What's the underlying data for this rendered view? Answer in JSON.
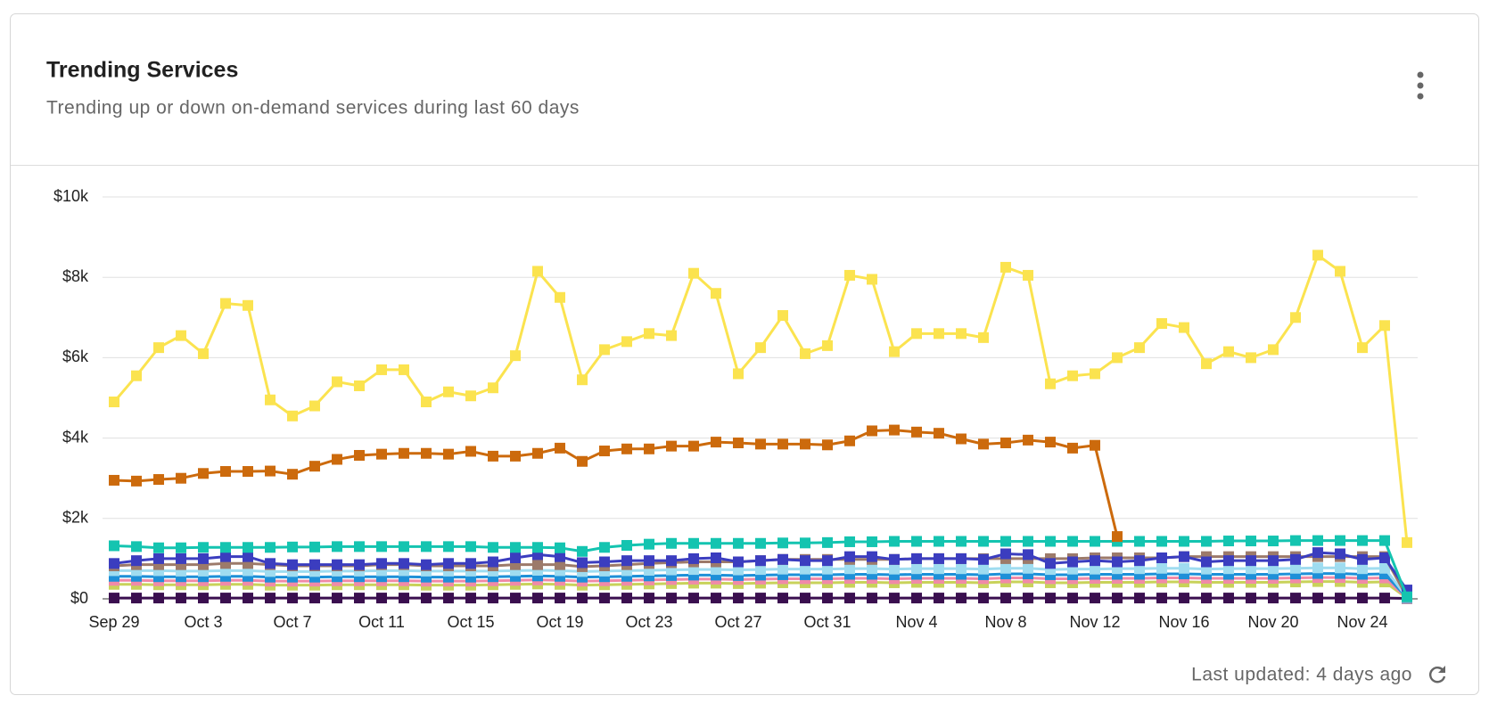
{
  "chart_data": {
    "type": "line",
    "title": "Trending Services",
    "subtitle": "Trending up or down on-demand services during last 60 days",
    "categories": [
      "Sep 29",
      null,
      null,
      null,
      "Oct 3",
      null,
      null,
      null,
      "Oct 7",
      null,
      null,
      null,
      "Oct 11",
      null,
      null,
      null,
      "Oct 15",
      null,
      null,
      null,
      "Oct 19",
      null,
      null,
      null,
      "Oct 23",
      null,
      null,
      null,
      "Oct 27",
      null,
      null,
      null,
      "Oct 31",
      null,
      null,
      null,
      "Nov 4",
      null,
      null,
      null,
      "Nov 8",
      null,
      null,
      null,
      "Nov 12",
      null,
      null,
      null,
      "Nov 16",
      null,
      null,
      null,
      "Nov 20",
      null,
      null,
      null,
      "Nov 24",
      null,
      null
    ],
    "ylim": [
      0,
      10000
    ],
    "yticks": [
      {
        "value": 0,
        "label": "$0"
      },
      {
        "value": 2000,
        "label": "$2k"
      },
      {
        "value": 4000,
        "label": "$4k"
      },
      {
        "value": 6000,
        "label": "$6k"
      },
      {
        "value": 8000,
        "label": "$8k"
      },
      {
        "value": 10000,
        "label": "$10k"
      }
    ],
    "grid": true,
    "series": [
      {
        "color": "#fbe34f",
        "values": [
          4900,
          5550,
          6250,
          6550,
          6100,
          7350,
          7300,
          4950,
          4550,
          4800,
          5400,
          5300,
          5700,
          5700,
          4900,
          5150,
          5050,
          5250,
          6050,
          8150,
          7500,
          5450,
          6200,
          6400,
          6600,
          6550,
          8100,
          7600,
          5600,
          6250,
          7050,
          6100,
          6300,
          8050,
          7950,
          6150,
          6600,
          6600,
          6600,
          6500,
          8250,
          8050,
          5350,
          5550,
          5600,
          6000,
          6250,
          6850,
          6750,
          5850,
          6150,
          6000,
          6200,
          7000,
          8550,
          8150,
          6250,
          6800,
          1400
        ]
      },
      {
        "color": "#cc6a0c",
        "values": [
          2950,
          2930,
          2970,
          3000,
          3120,
          3170,
          3170,
          3180,
          3100,
          3300,
          3470,
          3570,
          3600,
          3620,
          3620,
          3600,
          3670,
          3550,
          3550,
          3620,
          3750,
          3420,
          3680,
          3730,
          3730,
          3800,
          3800,
          3900,
          3880,
          3850,
          3850,
          3850,
          3830,
          3930,
          4180,
          4200,
          4150,
          4120,
          3980,
          3850,
          3880,
          3950,
          3900,
          3750,
          3820,
          1550,
          null,
          null,
          null,
          null,
          null,
          null,
          null,
          null,
          null,
          null,
          null,
          null,
          null
        ]
      },
      {
        "color": "#14c4b0",
        "values": [
          1320,
          1300,
          1270,
          1270,
          1280,
          1280,
          1280,
          1280,
          1290,
          1290,
          1300,
          1300,
          1300,
          1300,
          1300,
          1300,
          1300,
          1280,
          1280,
          1280,
          1270,
          1180,
          1280,
          1330,
          1360,
          1380,
          1380,
          1380,
          1380,
          1380,
          1390,
          1390,
          1400,
          1420,
          1420,
          1430,
          1430,
          1430,
          1430,
          1430,
          1430,
          1430,
          1430,
          1430,
          1430,
          1430,
          1430,
          1430,
          1430,
          1430,
          1440,
          1440,
          1440,
          1450,
          1450,
          1450,
          1450,
          1450,
          50
        ]
      },
      {
        "color": "#3b3dbf",
        "values": [
          880,
          950,
          1000,
          1000,
          1000,
          1050,
          1050,
          880,
          850,
          850,
          850,
          850,
          880,
          880,
          850,
          880,
          880,
          920,
          1020,
          1100,
          1050,
          900,
          920,
          950,
          950,
          950,
          1000,
          1020,
          920,
          950,
          980,
          950,
          950,
          1050,
          1050,
          980,
          1000,
          1000,
          1000,
          980,
          1120,
          1100,
          880,
          920,
          950,
          920,
          950,
          1020,
          1050,
          920,
          950,
          950,
          950,
          980,
          1150,
          1120,
          980,
          1020,
          220
        ]
      },
      {
        "color": "#9c7a6a",
        "values": [
          820,
          850,
          850,
          850,
          850,
          880,
          880,
          850,
          820,
          820,
          820,
          820,
          850,
          850,
          820,
          820,
          820,
          820,
          850,
          850,
          850,
          800,
          820,
          850,
          880,
          900,
          920,
          920,
          920,
          950,
          980,
          980,
          980,
          980,
          980,
          980,
          1000,
          1000,
          1000,
          1000,
          1000,
          1000,
          1000,
          1000,
          1020,
          1020,
          1020,
          1020,
          1050,
          1050,
          1050,
          1050,
          1050,
          1050,
          1050,
          1050,
          1050,
          1050,
          50
        ]
      },
      {
        "color": "#9fdcf0",
        "values": [
          700,
          700,
          700,
          690,
          690,
          700,
          700,
          680,
          680,
          680,
          690,
          690,
          700,
          700,
          690,
          690,
          690,
          690,
          700,
          710,
          700,
          680,
          690,
          700,
          710,
          720,
          730,
          730,
          720,
          730,
          740,
          740,
          740,
          750,
          750,
          740,
          750,
          750,
          750,
          740,
          760,
          760,
          730,
          740,
          740,
          750,
          750,
          760,
          760,
          740,
          750,
          750,
          750,
          760,
          770,
          770,
          750,
          760,
          40
        ]
      },
      {
        "color": "#1e90d8",
        "values": [
          560,
          560,
          550,
          550,
          550,
          560,
          560,
          540,
          540,
          540,
          550,
          550,
          550,
          550,
          540,
          540,
          540,
          550,
          560,
          570,
          560,
          540,
          550,
          560,
          570,
          580,
          590,
          590,
          580,
          590,
          600,
          600,
          600,
          610,
          610,
          600,
          610,
          610,
          610,
          600,
          620,
          620,
          600,
          600,
          610,
          610,
          610,
          620,
          620,
          610,
          610,
          610,
          610,
          620,
          630,
          630,
          610,
          620,
          30
        ]
      },
      {
        "color": "#f08aa8",
        "values": [
          460,
          460,
          450,
          450,
          450,
          460,
          460,
          440,
          440,
          440,
          450,
          450,
          450,
          450,
          440,
          440,
          440,
          450,
          460,
          470,
          460,
          440,
          450,
          460,
          470,
          480,
          490,
          490,
          480,
          490,
          500,
          500,
          500,
          510,
          510,
          500,
          510,
          510,
          510,
          500,
          520,
          520,
          500,
          500,
          510,
          510,
          510,
          520,
          520,
          510,
          510,
          510,
          510,
          520,
          530,
          530,
          510,
          520,
          20
        ]
      },
      {
        "color": "#c8d25a",
        "values": [
          360,
          360,
          350,
          350,
          350,
          360,
          360,
          340,
          340,
          340,
          350,
          350,
          350,
          350,
          340,
          340,
          340,
          350,
          360,
          370,
          360,
          340,
          350,
          360,
          370,
          380,
          390,
          390,
          380,
          390,
          400,
          400,
          400,
          410,
          410,
          400,
          410,
          410,
          410,
          400,
          420,
          420,
          400,
          400,
          410,
          410,
          410,
          420,
          420,
          410,
          410,
          410,
          410,
          420,
          430,
          430,
          410,
          420,
          20
        ]
      },
      {
        "color": "#3a0f4f",
        "values": [
          20,
          20,
          20,
          20,
          20,
          20,
          20,
          20,
          20,
          20,
          20,
          20,
          20,
          20,
          20,
          20,
          20,
          20,
          20,
          20,
          20,
          20,
          20,
          20,
          20,
          20,
          20,
          20,
          20,
          20,
          20,
          20,
          20,
          20,
          20,
          20,
          20,
          20,
          20,
          20,
          20,
          20,
          20,
          20,
          20,
          20,
          20,
          20,
          20,
          20,
          20,
          20,
          20,
          20,
          20,
          20,
          20,
          20,
          10
        ]
      }
    ]
  },
  "footer": {
    "last_updated": "Last updated: 4 days ago"
  }
}
